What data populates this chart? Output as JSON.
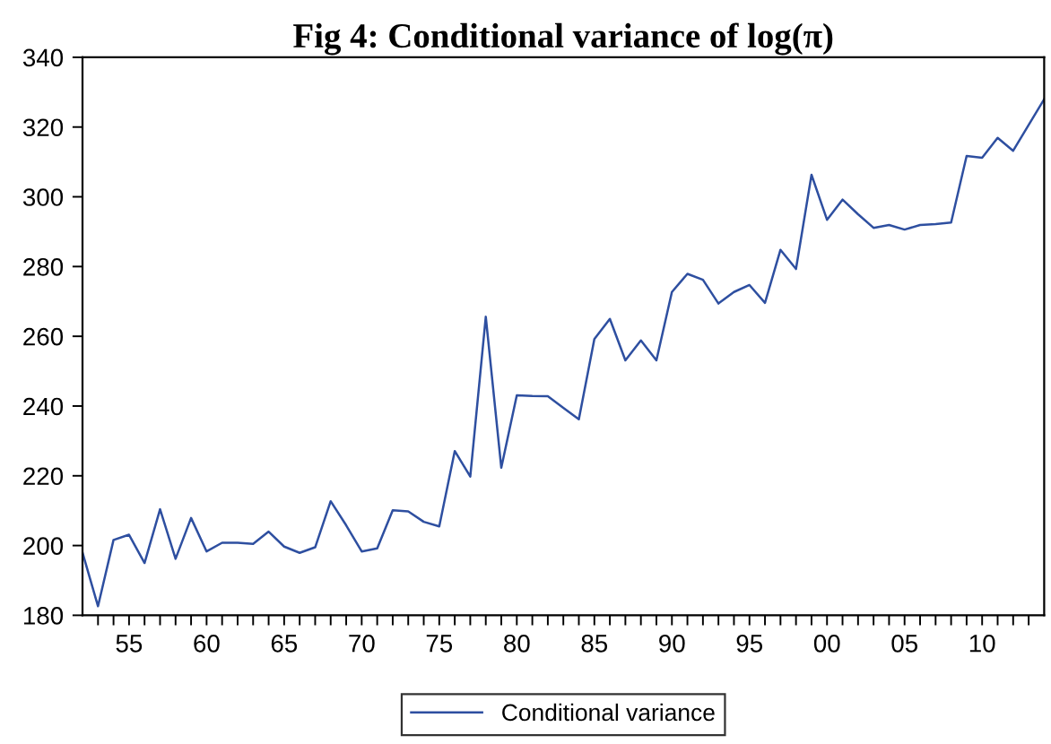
{
  "chart_data": {
    "type": "line",
    "title": "Fig 4: Conditional variance of log(π)",
    "x": [
      1952,
      1953,
      1954,
      1955,
      1956,
      1957,
      1958,
      1959,
      1960,
      1961,
      1962,
      1963,
      1964,
      1965,
      1966,
      1967,
      1968,
      1969,
      1970,
      1971,
      1972,
      1973,
      1974,
      1975,
      1976,
      1977,
      1978,
      1979,
      1980,
      1981,
      1982,
      1983,
      1984,
      1985,
      1986,
      1987,
      1988,
      1989,
      1990,
      1991,
      1992,
      1993,
      1994,
      1995,
      1996,
      1997,
      1998,
      1999,
      2000,
      2001,
      2002,
      2003,
      2004,
      2005,
      2006,
      2007,
      2008,
      2009,
      2010,
      2011,
      2012,
      2013,
      2014
    ],
    "series": [
      {
        "name": "Conditional variance",
        "color": "#2e4fa0",
        "values": [
          198,
          182.6,
          201.6,
          203.1,
          195,
          210.4,
          196.2,
          207.9,
          198.3,
          200.8,
          200.8,
          200.5,
          204,
          199.7,
          197.9,
          199.5,
          212.7,
          205.8,
          198.3,
          199.2,
          210.1,
          209.8,
          206.8,
          205.5,
          227.1,
          219.8,
          265.6,
          222.3,
          243.1,
          242.9,
          242.8,
          239.5,
          236.2,
          259.2,
          265,
          253.1,
          258.8,
          253.1,
          272.7,
          277.9,
          276.2,
          269.4,
          272.7,
          274.7,
          269.6,
          284.8,
          279.3,
          306.3,
          293.4,
          299.2,
          295,
          291.1,
          291.9,
          290.6,
          291.9,
          292.2,
          292.6,
          311.7,
          311.2,
          316.9,
          313.2,
          320.6,
          328
        ]
      }
    ],
    "xlim": [
      1952,
      2014
    ],
    "xticks": [
      {
        "value": 1953,
        "label": null
      },
      {
        "value": 1954,
        "label": null
      },
      {
        "value": 1955,
        "label": "55"
      },
      {
        "value": 1956,
        "label": null
      },
      {
        "value": 1957,
        "label": null
      },
      {
        "value": 1958,
        "label": null
      },
      {
        "value": 1959,
        "label": null
      },
      {
        "value": 1960,
        "label": "60"
      },
      {
        "value": 1961,
        "label": null
      },
      {
        "value": 1962,
        "label": null
      },
      {
        "value": 1963,
        "label": null
      },
      {
        "value": 1964,
        "label": null
      },
      {
        "value": 1965,
        "label": "65"
      },
      {
        "value": 1966,
        "label": null
      },
      {
        "value": 1967,
        "label": null
      },
      {
        "value": 1968,
        "label": null
      },
      {
        "value": 1969,
        "label": null
      },
      {
        "value": 1970,
        "label": "70"
      },
      {
        "value": 1971,
        "label": null
      },
      {
        "value": 1972,
        "label": null
      },
      {
        "value": 1973,
        "label": null
      },
      {
        "value": 1974,
        "label": null
      },
      {
        "value": 1975,
        "label": "75"
      },
      {
        "value": 1976,
        "label": null
      },
      {
        "value": 1977,
        "label": null
      },
      {
        "value": 1978,
        "label": null
      },
      {
        "value": 1979,
        "label": null
      },
      {
        "value": 1980,
        "label": "80"
      },
      {
        "value": 1981,
        "label": null
      },
      {
        "value": 1982,
        "label": null
      },
      {
        "value": 1983,
        "label": null
      },
      {
        "value": 1984,
        "label": null
      },
      {
        "value": 1985,
        "label": "85"
      },
      {
        "value": 1986,
        "label": null
      },
      {
        "value": 1987,
        "label": null
      },
      {
        "value": 1988,
        "label": null
      },
      {
        "value": 1989,
        "label": null
      },
      {
        "value": 1990,
        "label": "90"
      },
      {
        "value": 1991,
        "label": null
      },
      {
        "value": 1992,
        "label": null
      },
      {
        "value": 1993,
        "label": null
      },
      {
        "value": 1994,
        "label": null
      },
      {
        "value": 1995,
        "label": "95"
      },
      {
        "value": 1996,
        "label": null
      },
      {
        "value": 1997,
        "label": null
      },
      {
        "value": 1998,
        "label": null
      },
      {
        "value": 1999,
        "label": null
      },
      {
        "value": 2000,
        "label": "00"
      },
      {
        "value": 2001,
        "label": null
      },
      {
        "value": 2002,
        "label": null
      },
      {
        "value": 2003,
        "label": null
      },
      {
        "value": 2004,
        "label": null
      },
      {
        "value": 2005,
        "label": "05"
      },
      {
        "value": 2006,
        "label": null
      },
      {
        "value": 2007,
        "label": null
      },
      {
        "value": 2008,
        "label": null
      },
      {
        "value": 2009,
        "label": null
      },
      {
        "value": 2010,
        "label": "10"
      },
      {
        "value": 2011,
        "label": null
      },
      {
        "value": 2012,
        "label": null
      },
      {
        "value": 2013,
        "label": null
      }
    ],
    "ylim": [
      180,
      340
    ],
    "yticks": [
      180,
      200,
      220,
      240,
      260,
      280,
      300,
      320,
      340
    ],
    "grid": false,
    "legend": "bottom",
    "line_style": "solid",
    "marker": "none"
  }
}
